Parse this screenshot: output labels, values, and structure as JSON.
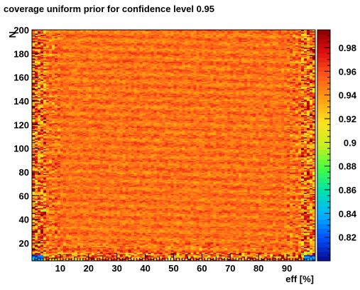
{
  "chart_data": {
    "type": "heatmap",
    "title": "coverage uniform prior for confidence level 0.95",
    "xlabel": "eff [%]",
    "ylabel": "N",
    "xlim": [
      0,
      100
    ],
    "ylim": [
      5,
      200
    ],
    "x_ticks": [
      10,
      20,
      30,
      40,
      50,
      60,
      70,
      80,
      90
    ],
    "y_ticks": [
      20,
      40,
      60,
      80,
      100,
      120,
      140,
      160,
      180,
      200
    ],
    "x_bins": 100,
    "y_bins": 196,
    "z_range": [
      0.8,
      0.995
    ],
    "colorbar_ticks": [
      0.82,
      0.84,
      0.86,
      0.88,
      0.9,
      0.92,
      0.94,
      0.96,
      0.98
    ],
    "typical_value": 0.95,
    "colormap": [
      "#0a0a8c",
      "#0050ff",
      "#00b4ff",
      "#00e0b0",
      "#40ff40",
      "#c8f020",
      "#ffe020",
      "#ffa010",
      "#ff5a1a",
      "#e01010",
      "#8c0000"
    ],
    "grid": false,
    "legend": "colorbar-right"
  }
}
